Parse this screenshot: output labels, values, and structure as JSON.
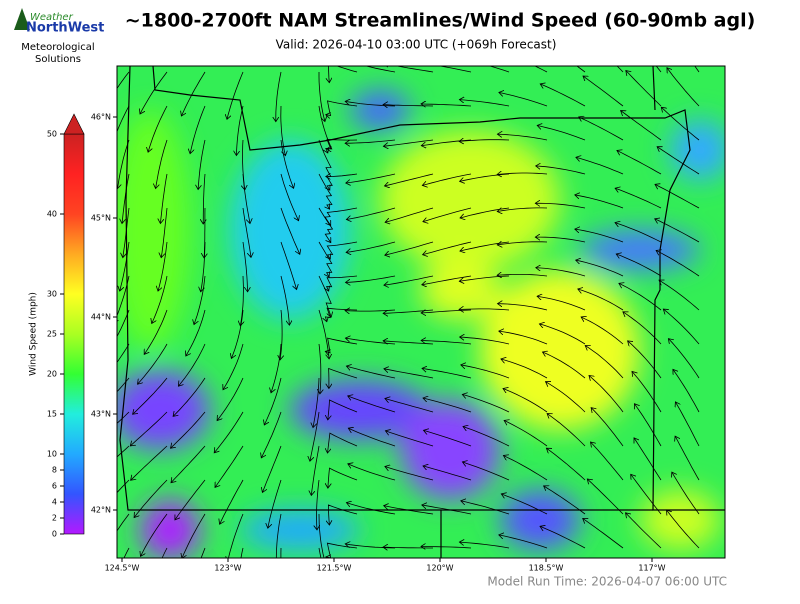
{
  "logo": {
    "line1": "Weather",
    "line2": "NorthWest",
    "caption": "Meteorological Solutions"
  },
  "title": "~1800-2700ft NAM Streamlines/Wind Speed (60-90mb agl)",
  "subtitle": "Valid: 2026-04-10 03:00 UTC  (+069h Forecast)",
  "colorbar": {
    "label": "Wind Speed (mph)",
    "lim": [
      0,
      50
    ],
    "ticks": [
      0,
      2,
      4,
      6,
      8,
      10,
      15,
      20,
      25,
      30,
      40,
      50
    ],
    "colors": [
      "#b319ff",
      "#3355ff",
      "#22aaff",
      "#22eedd",
      "#33ff33",
      "#aaff22",
      "#ffff22",
      "#ffaa22",
      "#ff4422",
      "#ff2222",
      "#cc2222"
    ]
  },
  "map": {
    "lat_labels": [
      "46°N",
      "45°N",
      "44°N",
      "43°N",
      "42°N"
    ],
    "lon_labels": [
      "124.5°W",
      "123°W",
      "121.5°W",
      "120°W",
      "118.5°W",
      "117°W"
    ]
  },
  "footer": "Model Run Time: 2026-04-07 06:00 UTC"
}
